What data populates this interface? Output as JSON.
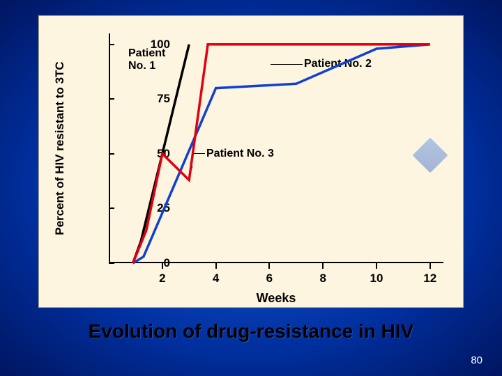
{
  "slide": {
    "caption": "Evolution of drug-resistance in HIV",
    "page_number": "80",
    "background_gradient": [
      "#1a5cd6",
      "#0030a0",
      "#001560"
    ]
  },
  "chart": {
    "type": "line",
    "background_color": "#fdf5e0",
    "x_axis": {
      "title": "Weeks",
      "min": 0,
      "max": 12.5,
      "ticks": [
        2,
        4,
        6,
        8,
        10,
        12
      ],
      "tick_labels": [
        "2",
        "4",
        "6",
        "8",
        "10",
        "12"
      ],
      "title_fontsize": 18,
      "tick_fontsize": 17
    },
    "y_axis": {
      "title": "Percent of HIV resistant to 3TC",
      "min": 0,
      "max": 105,
      "ticks": [
        0,
        25,
        50,
        75,
        100
      ],
      "tick_labels": [
        "0",
        "25",
        "50",
        "75",
        "100"
      ],
      "title_fontsize": 17,
      "tick_fontsize": 17
    },
    "line_width": 3.5,
    "series": [
      {
        "name": "Patient No. 1",
        "label": "Patient\nNo. 1",
        "color": "#000000",
        "x": [
          0.9,
          1.2,
          3.0
        ],
        "y": [
          0,
          10,
          100
        ]
      },
      {
        "name": "Patient No. 2",
        "label": "Patient No. 2",
        "color": "#1040d0",
        "x": [
          0.9,
          1.3,
          4.0,
          7.0,
          10.0,
          12.0
        ],
        "y": [
          0,
          3,
          80,
          82,
          98,
          100
        ]
      },
      {
        "name": "Patient No. 3",
        "label": "Patient No. 3",
        "color": "#e00010",
        "x": [
          0.9,
          1.4,
          2.0,
          3.0,
          3.7,
          12.0
        ],
        "y": [
          0,
          15,
          50,
          38,
          100,
          100
        ]
      }
    ]
  }
}
